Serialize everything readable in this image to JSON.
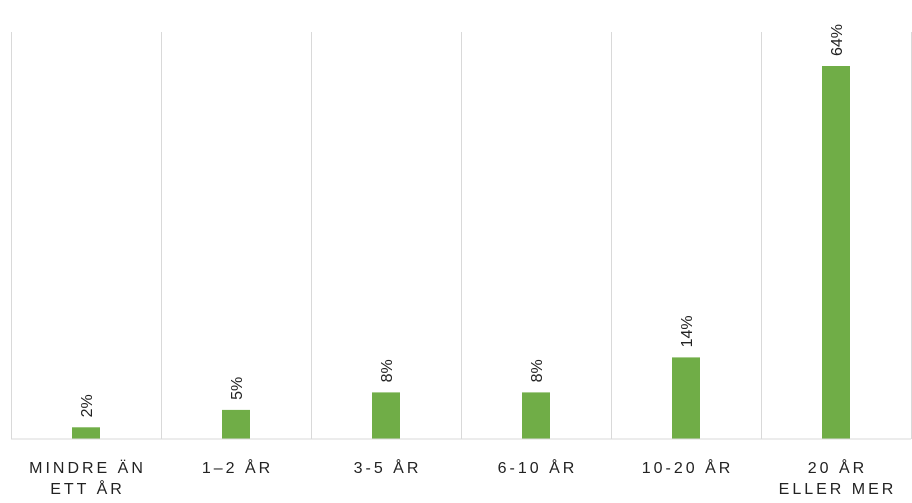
{
  "chart_data": {
    "type": "bar",
    "categories": [
      [
        "MINDRE ÄN",
        "ETT ÅR"
      ],
      [
        "1–2 ÅR"
      ],
      [
        "3-5 ÅR"
      ],
      [
        "6-10 ÅR"
      ],
      [
        "10-20 ÅR"
      ],
      [
        "20 ÅR",
        "ELLER MER"
      ]
    ],
    "values": [
      2,
      5,
      8,
      8,
      14,
      64
    ],
    "data_labels": [
      "2%",
      "5%",
      "8%",
      "8%",
      "14%",
      "64%"
    ],
    "unit": "%",
    "ylim": [
      0,
      64
    ],
    "bar_color": "#70ad47",
    "grid_color": "#d9d9d9",
    "grid": "vertical category separators",
    "legend": "none",
    "title": "",
    "xlabel": "",
    "ylabel": ""
  }
}
